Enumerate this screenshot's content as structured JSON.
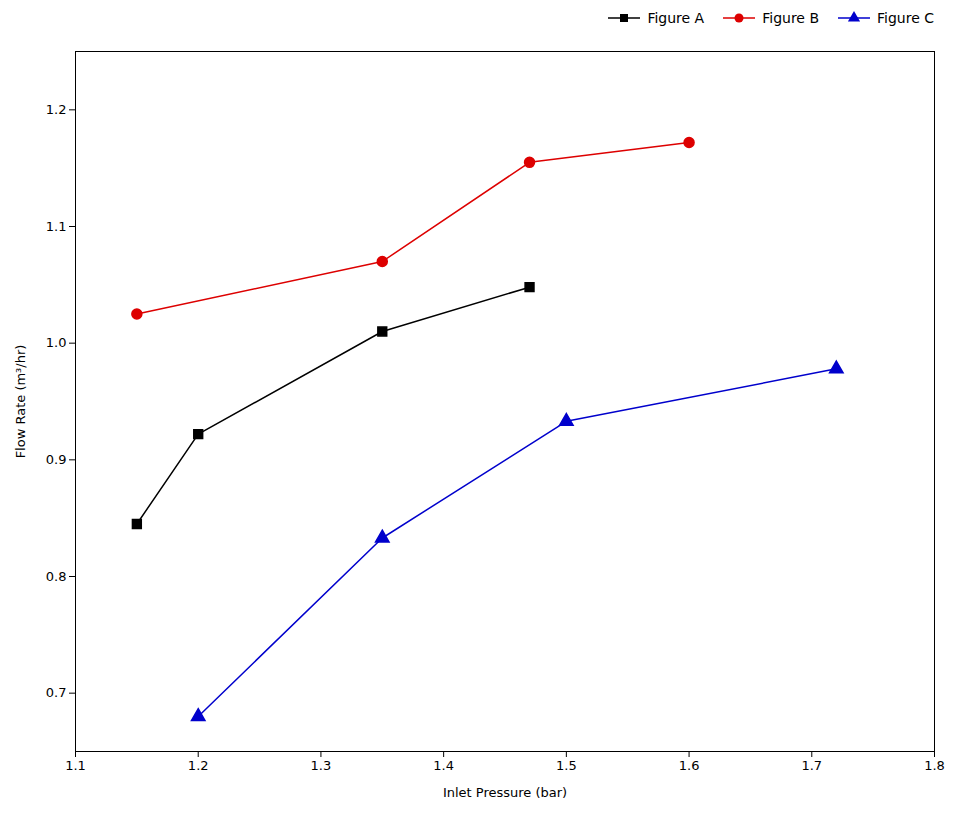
{
  "chart_data": {
    "type": "line",
    "xlabel": "Inlet Pressure (bar)",
    "ylabel": "Flow Rate (m³/hr)",
    "xlim": [
      1.1,
      1.8
    ],
    "ylim": [
      0.65,
      1.25
    ],
    "xticks": [
      1.1,
      1.2,
      1.3,
      1.4,
      1.5,
      1.6,
      1.7,
      1.8
    ],
    "yticks": [
      0.7,
      0.8,
      0.9,
      {
        "value": 1.0,
        "label": "1.0"
      },
      1.1,
      1.2
    ],
    "grid": false,
    "legend": "upper right",
    "series": [
      {
        "name": "Figure A",
        "color": "black",
        "marker": "square",
        "x": [
          1.15,
          1.2,
          1.35,
          1.47
        ],
        "values": [
          0.845,
          0.922,
          1.01,
          1.048
        ]
      },
      {
        "name": "Figure B",
        "color": "#dd0000",
        "marker": "circle",
        "x": [
          1.15,
          1.35,
          1.47,
          1.6
        ],
        "values": [
          1.025,
          1.07,
          1.155,
          1.172
        ]
      },
      {
        "name": "Figure C",
        "color": "#0000cc",
        "marker": "triangle",
        "x": [
          1.2,
          1.35,
          1.5,
          1.72
        ],
        "values": [
          0.68,
          0.833,
          0.933,
          0.978
        ]
      }
    ]
  }
}
